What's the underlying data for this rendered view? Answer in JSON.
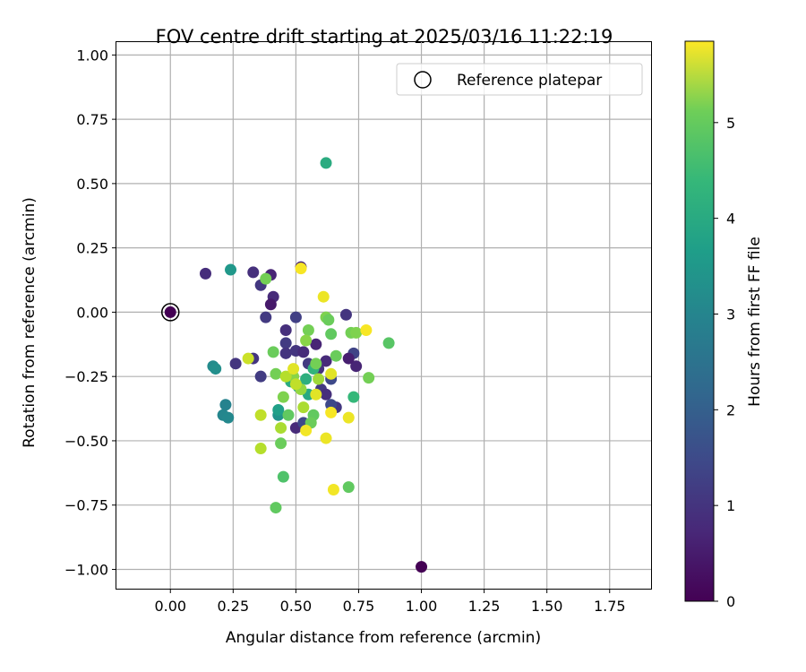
{
  "chart_data": {
    "type": "scatter",
    "title": "FOV centre drift starting at 2025/03/16 11:22:19",
    "xlabel": "Angular distance from reference (arcmin)",
    "ylabel": "Rotation from reference (arcmin)",
    "xlim": [
      -0.215,
      1.915
    ],
    "ylim": [
      -1.075,
      1.05
    ],
    "xticks": [
      "0.00",
      "0.25",
      "0.50",
      "0.75",
      "1.00",
      "1.25",
      "1.50",
      "1.75"
    ],
    "yticks": [
      "1.00",
      "0.75",
      "0.50",
      "0.25",
      "0.00",
      "−0.25",
      "−0.50",
      "−0.75",
      "−1.00"
    ],
    "grid": true,
    "legend": {
      "label": "Reference platepar",
      "position": "top-right"
    },
    "reference_point": [
      0.0,
      0.0
    ],
    "colorbar": {
      "label": "Hours from first FF file",
      "range": [
        0,
        5.85
      ],
      "ticks": [
        "0",
        "1",
        "2",
        "3",
        "4",
        "5"
      ],
      "colormap": "viridis"
    },
    "points": [
      [
        0.0,
        0.0,
        0.0
      ],
      [
        1.0,
        -0.99,
        0.0
      ],
      [
        0.14,
        0.15,
        0.75
      ],
      [
        0.33,
        0.155,
        0.8
      ],
      [
        0.36,
        0.105,
        0.95
      ],
      [
        0.4,
        0.145,
        0.6
      ],
      [
        0.41,
        0.06,
        0.7
      ],
      [
        0.4,
        0.03,
        0.4
      ],
      [
        0.38,
        -0.02,
        1.0
      ],
      [
        0.46,
        -0.07,
        0.8
      ],
      [
        0.46,
        -0.12,
        1.05
      ],
      [
        0.46,
        -0.16,
        0.9
      ],
      [
        0.5,
        -0.02,
        1.1
      ],
      [
        0.5,
        -0.15,
        0.9
      ],
      [
        0.53,
        -0.155,
        0.7
      ],
      [
        0.52,
        0.175,
        0.6
      ],
      [
        0.58,
        -0.125,
        0.6
      ],
      [
        0.55,
        -0.2,
        1.0
      ],
      [
        0.59,
        -0.22,
        0.85
      ],
      [
        0.62,
        -0.19,
        0.7
      ],
      [
        0.7,
        -0.01,
        0.9
      ],
      [
        0.73,
        -0.16,
        1.2
      ],
      [
        0.74,
        -0.21,
        0.6
      ],
      [
        0.71,
        -0.18,
        0.5
      ],
      [
        0.64,
        -0.26,
        1.3
      ],
      [
        0.6,
        -0.3,
        1.0
      ],
      [
        0.62,
        -0.32,
        0.8
      ],
      [
        0.66,
        -0.37,
        0.95
      ],
      [
        0.5,
        -0.45,
        0.7
      ],
      [
        0.53,
        -0.43,
        1.3
      ],
      [
        0.26,
        -0.2,
        0.9
      ],
      [
        0.33,
        -0.18,
        0.9
      ],
      [
        0.36,
        -0.25,
        1.05
      ],
      [
        0.64,
        -0.36,
        1.3
      ],
      [
        0.24,
        0.165,
        3.1
      ],
      [
        0.17,
        -0.21,
        2.8
      ],
      [
        0.18,
        -0.22,
        2.9
      ],
      [
        0.21,
        -0.4,
        2.7
      ],
      [
        0.23,
        -0.41,
        2.75
      ],
      [
        0.22,
        -0.36,
        2.6
      ],
      [
        0.43,
        -0.4,
        3.0
      ],
      [
        0.43,
        -0.38,
        3.3
      ],
      [
        0.48,
        -0.27,
        3.6
      ],
      [
        0.51,
        -0.29,
        3.2
      ],
      [
        0.54,
        -0.26,
        3.7
      ],
      [
        0.55,
        -0.32,
        3.5
      ],
      [
        0.57,
        -0.22,
        3.8
      ],
      [
        0.62,
        0.58,
        3.6
      ],
      [
        0.73,
        -0.33,
        3.9
      ],
      [
        0.87,
        -0.12,
        4.3
      ],
      [
        0.38,
        0.13,
        4.6
      ],
      [
        0.41,
        -0.155,
        4.5
      ],
      [
        0.42,
        -0.24,
        4.6
      ],
      [
        0.45,
        -0.33,
        4.7
      ],
      [
        0.47,
        -0.4,
        4.4
      ],
      [
        0.44,
        -0.51,
        4.5
      ],
      [
        0.45,
        -0.64,
        4.2
      ],
      [
        0.42,
        -0.76,
        4.4
      ],
      [
        0.49,
        -0.25,
        4.8
      ],
      [
        0.52,
        -0.3,
        4.9
      ],
      [
        0.55,
        -0.07,
        4.6
      ],
      [
        0.54,
        -0.11,
        4.8
      ],
      [
        0.62,
        -0.02,
        4.7
      ],
      [
        0.63,
        -0.03,
        4.5
      ],
      [
        0.64,
        -0.085,
        4.4
      ],
      [
        0.66,
        -0.17,
        4.5
      ],
      [
        0.58,
        -0.2,
        4.6
      ],
      [
        0.57,
        -0.4,
        4.4
      ],
      [
        0.56,
        -0.43,
        4.5
      ],
      [
        0.72,
        -0.08,
        4.6
      ],
      [
        0.74,
        -0.08,
        4.7
      ],
      [
        0.79,
        -0.255,
        4.6
      ],
      [
        0.71,
        -0.68,
        4.4
      ],
      [
        0.59,
        -0.26,
        5.0
      ],
      [
        0.44,
        -0.45,
        5.1
      ],
      [
        0.36,
        -0.53,
        5.2
      ],
      [
        0.36,
        -0.4,
        5.3
      ],
      [
        0.46,
        -0.25,
        5.2
      ],
      [
        0.5,
        -0.28,
        5.3
      ],
      [
        0.53,
        -0.37,
        5.1
      ],
      [
        0.31,
        -0.18,
        5.4
      ],
      [
        0.49,
        -0.22,
        5.6
      ],
      [
        0.52,
        0.17,
        5.8
      ],
      [
        0.61,
        0.06,
        5.7
      ],
      [
        0.54,
        -0.46,
        5.75
      ],
      [
        0.58,
        -0.32,
        5.6
      ],
      [
        0.62,
        -0.49,
        5.7
      ],
      [
        0.64,
        -0.39,
        5.8
      ],
      [
        0.64,
        -0.24,
        5.6
      ],
      [
        0.65,
        -0.69,
        5.75
      ],
      [
        0.71,
        -0.41,
        5.7
      ],
      [
        0.78,
        -0.07,
        5.8
      ]
    ]
  }
}
